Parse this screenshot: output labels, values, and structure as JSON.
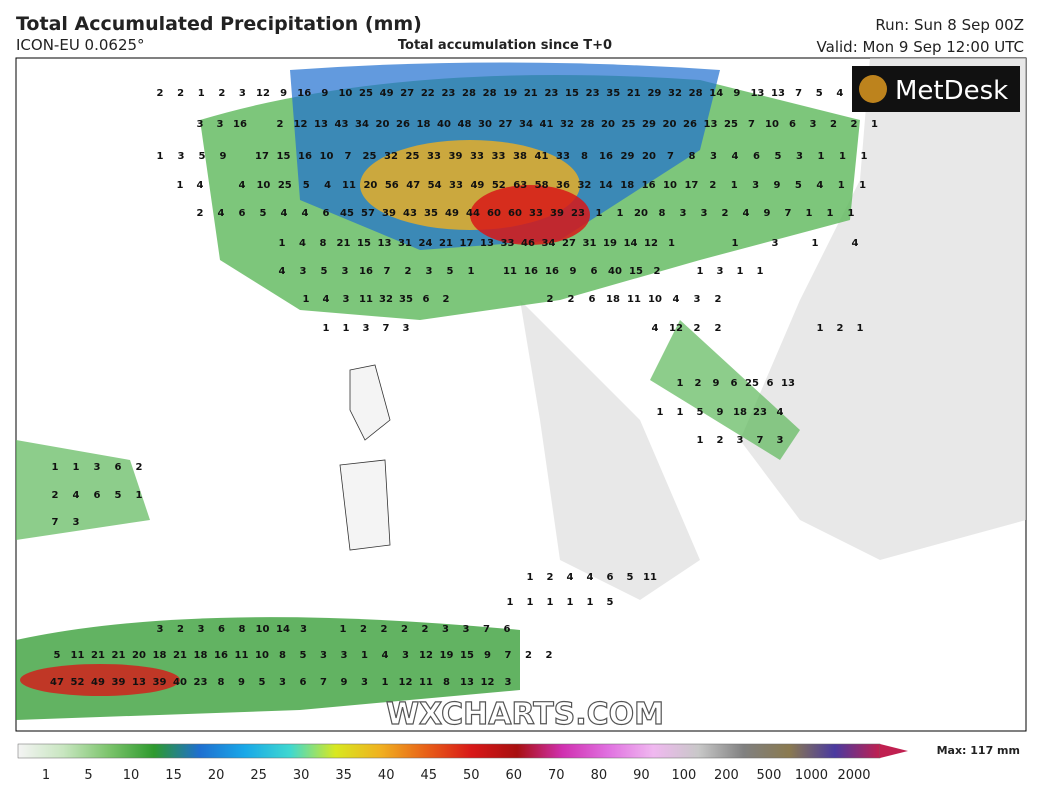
{
  "header": {
    "title": "Total Accumulated Precipitation (mm)",
    "model": "ICON-EU 0.0625°",
    "subtitle": "Total accumulation since T+0",
    "run": "Run: Sun 8 Sep 00Z",
    "valid": "Valid: Mon 9 Sep 12:00 UTC"
  },
  "logo": "MetDesk",
  "watermark": "WXCHARTS.COM",
  "map_labels": [
    [
      2,
      2,
      1,
      2,
      3,
      12,
      9,
      16,
      9,
      10,
      25,
      49,
      27,
      22,
      23,
      28,
      28,
      19,
      21,
      23,
      15,
      23,
      35,
      21,
      29,
      32,
      28,
      14,
      9,
      13,
      13,
      7,
      5,
      4
    ],
    [
      3,
      3,
      16
    ],
    [
      2,
      12,
      13,
      43,
      34,
      20,
      26,
      18,
      40,
      48,
      30,
      27,
      34,
      41,
      32,
      28,
      20,
      25,
      29,
      20,
      26,
      13,
      25,
      7,
      10,
      6,
      3,
      2,
      2,
      1
    ],
    [
      1,
      3,
      5,
      9
    ],
    [
      17,
      15,
      16,
      10,
      7,
      25,
      32,
      25,
      33,
      39,
      33,
      33,
      38,
      41,
      33,
      8,
      16,
      29,
      20,
      7,
      8,
      3,
      4,
      6,
      5,
      3,
      1,
      1,
      1
    ],
    [
      1,
      4
    ],
    [
      4,
      10,
      25,
      5,
      4,
      11,
      20,
      56,
      47,
      54,
      33,
      49,
      52,
      63,
      58,
      36,
      32,
      14,
      18,
      16,
      10,
      17,
      2,
      1,
      3,
      9,
      5,
      4,
      1,
      1
    ],
    [
      2,
      4,
      6,
      5,
      4,
      4,
      6,
      45,
      57,
      39,
      43,
      35,
      49,
      44,
      60,
      60,
      33,
      39,
      23,
      1,
      1,
      20,
      8,
      3,
      3,
      2,
      4,
      9,
      7,
      1,
      1,
      1
    ],
    [
      1,
      4,
      8,
      21,
      15,
      13,
      31,
      24,
      21,
      17,
      13,
      33,
      46,
      34,
      27,
      31,
      19,
      14,
      12,
      1
    ],
    [
      1,
      3,
      1,
      4
    ],
    [
      4,
      3,
      5,
      3,
      16,
      7,
      2,
      3,
      5,
      1
    ],
    [
      11,
      16,
      16,
      9,
      6,
      40,
      15,
      2
    ],
    [
      1,
      3,
      1,
      1
    ],
    [
      1,
      4,
      3,
      11,
      32,
      35,
      6,
      2
    ],
    [
      2,
      2,
      6,
      18,
      11,
      10,
      4,
      3,
      2
    ],
    [
      1,
      1,
      3,
      7,
      3
    ],
    [
      4,
      12,
      2,
      2
    ],
    [
      1,
      2,
      1
    ],
    [
      1,
      2,
      9,
      6,
      25,
      6,
      13
    ],
    [
      1,
      1,
      5,
      9,
      18,
      23,
      4
    ],
    [
      1,
      2,
      3,
      7,
      3
    ],
    [
      1,
      1,
      3,
      6,
      2
    ],
    [
      2,
      4,
      6,
      5,
      1
    ],
    [
      7,
      3
    ],
    [
      1,
      2,
      4,
      4,
      6,
      5,
      11
    ],
    [
      1,
      1,
      1,
      1,
      1,
      5
    ],
    [
      3,
      2,
      3,
      6,
      8,
      10,
      14,
      3
    ],
    [
      1,
      2,
      2,
      2,
      2,
      3,
      3,
      7,
      6
    ],
    [
      5,
      11,
      21,
      21,
      20,
      18,
      21,
      18,
      16,
      11,
      10,
      8,
      5,
      3,
      3,
      1,
      4,
      3,
      12,
      19,
      15,
      9,
      7,
      2,
      2
    ],
    [
      47,
      52,
      49,
      39,
      13,
      39,
      40,
      23,
      8,
      9,
      5,
      3,
      6,
      7,
      9,
      3,
      1,
      12,
      11,
      8,
      13,
      12,
      3
    ]
  ],
  "colorbar": {
    "labels": [
      1,
      5,
      10,
      15,
      20,
      25,
      30,
      35,
      40,
      45,
      50,
      60,
      70,
      80,
      90,
      100,
      200,
      500,
      1000,
      2000
    ],
    "colors": [
      "#f4f4f4",
      "#c8e6c0",
      "#7cc46c",
      "#2e9a2e",
      "#1f6fd0",
      "#19a8e8",
      "#3fd8d0",
      "#d8e820",
      "#f0b020",
      "#e86018",
      "#d81818",
      "#a81010",
      "#d030b0",
      "#e070e0",
      "#f0b8f0",
      "#c8c8c8",
      "#808080",
      "#8a7a50",
      "#4a3aa0",
      "#c02050"
    ],
    "max": "Max: 117 mm"
  }
}
